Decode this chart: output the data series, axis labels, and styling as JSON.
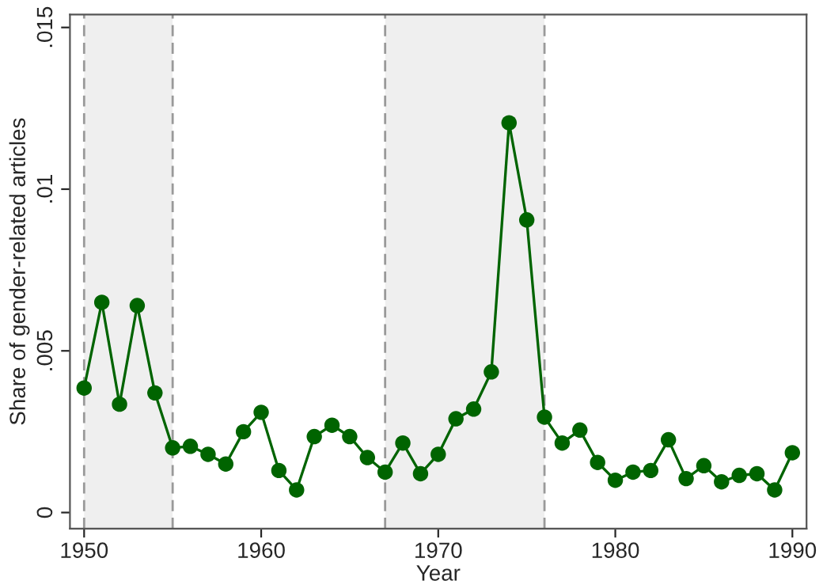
{
  "chart_data": {
    "type": "line",
    "xlabel": "Year",
    "ylabel": "Share of gender-related articles",
    "x": [
      1950,
      1951,
      1952,
      1953,
      1954,
      1955,
      1956,
      1957,
      1958,
      1959,
      1960,
      1961,
      1962,
      1963,
      1964,
      1965,
      1966,
      1967,
      1968,
      1969,
      1970,
      1971,
      1972,
      1973,
      1974,
      1975,
      1976,
      1977,
      1978,
      1979,
      1980,
      1981,
      1982,
      1983,
      1984,
      1985,
      1986,
      1987,
      1988,
      1989,
      1990
    ],
    "series": [
      {
        "color": "#006400",
        "values": [
          0.00385,
          0.0065,
          0.00335,
          0.0064,
          0.0037,
          0.002,
          0.00205,
          0.0018,
          0.0015,
          0.0025,
          0.0031,
          0.0013,
          0.0007,
          0.00235,
          0.0027,
          0.00235,
          0.0017,
          0.00125,
          0.00215,
          0.0012,
          0.0018,
          0.0029,
          0.0032,
          0.00435,
          0.01205,
          0.00905,
          0.00295,
          0.00215,
          0.00255,
          0.00155,
          0.001,
          0.00125,
          0.0013,
          0.00225,
          0.00105,
          0.00145,
          0.00095,
          0.00115,
          0.0012,
          0.0007,
          0.00185
        ]
      }
    ],
    "marker": "circle",
    "line_style": "solid",
    "grid": false,
    "legend": false,
    "xlim": [
      1949.2,
      1990.8
    ],
    "xticks": [
      1950,
      1960,
      1970,
      1980,
      1990
    ],
    "ylim": [
      -0.0005,
      0.0154
    ],
    "yticks": [
      {
        "value": 0,
        "label": "0"
      },
      {
        "value": 0.005,
        "label": ".005"
      },
      {
        "value": 0.01,
        "label": ".01"
      },
      {
        "value": 0.015,
        "label": ".015"
      }
    ],
    "bands": [
      {
        "axis": "x",
        "from": 1950,
        "to": 1955,
        "color": "#efefef"
      },
      {
        "axis": "x",
        "from": 1967,
        "to": 1976,
        "color": "#efefef"
      }
    ],
    "ref_lines": [
      {
        "axis": "x",
        "value": 1950,
        "color": "#999999",
        "line_style": "dashed"
      },
      {
        "axis": "x",
        "value": 1955,
        "color": "#999999",
        "line_style": "dashed"
      },
      {
        "axis": "x",
        "value": 1967,
        "color": "#999999",
        "line_style": "dashed"
      },
      {
        "axis": "x",
        "value": 1976,
        "color": "#999999",
        "line_style": "dashed"
      }
    ]
  }
}
